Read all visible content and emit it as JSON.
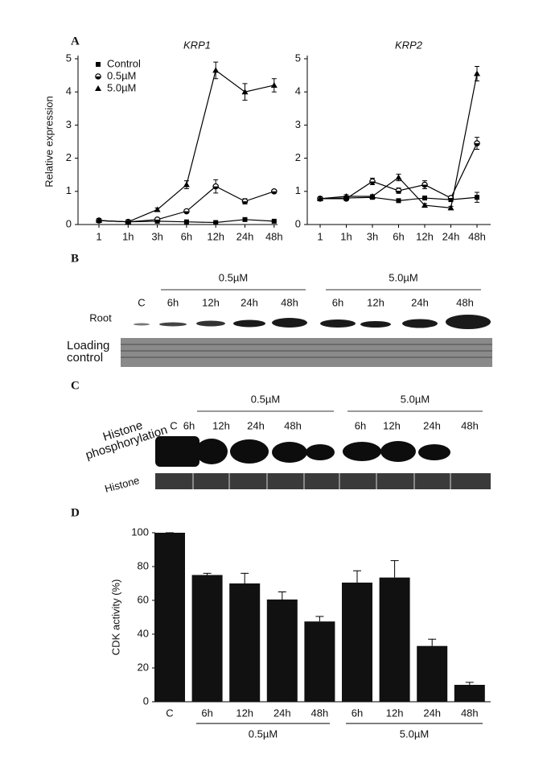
{
  "panel_labels": [
    "A",
    "B",
    "C",
    "D"
  ],
  "chart_data": [
    {
      "type": "line",
      "title": "KRP1",
      "ylabel": "Relative expression",
      "categories": [
        "1",
        "1h",
        "3h",
        "6h",
        "12h",
        "24h",
        "48h"
      ],
      "ylim": [
        0,
        5
      ],
      "yticks": [
        0,
        1,
        2,
        3,
        4,
        5
      ],
      "legend": "upper left",
      "series": [
        {
          "name": "Control",
          "marker": "square",
          "color": "#000000",
          "values": [
            0.12,
            0.08,
            0.1,
            0.08,
            0.06,
            0.15,
            0.1
          ],
          "errors": [
            0.02,
            0.02,
            0.02,
            0.02,
            0.02,
            0.03,
            0.02
          ]
        },
        {
          "name": "0.5µM",
          "marker": "half-circle",
          "color": "#000000",
          "values": [
            0.12,
            0.08,
            0.15,
            0.4,
            1.15,
            0.7,
            1.0
          ],
          "errors": [
            0.02,
            0.02,
            0.03,
            0.05,
            0.2,
            0.08,
            0.05
          ]
        },
        {
          "name": "5.0µM",
          "marker": "triangle",
          "color": "#000000",
          "values": [
            0.12,
            0.08,
            0.45,
            1.2,
            4.65,
            4.0,
            4.2
          ],
          "errors": [
            0.03,
            0.02,
            0.05,
            0.12,
            0.25,
            0.25,
            0.2
          ]
        }
      ]
    },
    {
      "type": "line",
      "title": "KRP2",
      "categories": [
        "1",
        "1h",
        "3h",
        "6h",
        "12h",
        "24h",
        "48h"
      ],
      "ylim": [
        0,
        5
      ],
      "yticks": [
        0,
        1,
        2,
        3,
        4,
        5
      ],
      "series": [
        {
          "name": "Control",
          "marker": "square",
          "color": "#000000",
          "values": [
            0.78,
            0.8,
            0.82,
            0.72,
            0.8,
            0.75,
            0.82
          ],
          "errors": [
            0.05,
            0.05,
            0.05,
            0.05,
            0.05,
            0.05,
            0.15
          ]
        },
        {
          "name": "0.5µM",
          "marker": "half-circle",
          "color": "#000000",
          "values": [
            0.78,
            0.78,
            1.3,
            1.02,
            1.2,
            0.8,
            2.45
          ],
          "errors": [
            0.05,
            0.05,
            0.1,
            0.08,
            0.12,
            0.05,
            0.18
          ]
        },
        {
          "name": "5.0µM",
          "marker": "triangle",
          "color": "#000000",
          "values": [
            0.78,
            0.85,
            0.85,
            1.42,
            0.58,
            0.5,
            4.55
          ],
          "errors": [
            0.05,
            0.05,
            0.05,
            0.1,
            0.05,
            0.05,
            0.22
          ]
        }
      ]
    },
    {
      "type": "bar",
      "ylabel": "CDK activity (%)",
      "categories": [
        "C",
        "6h",
        "12h",
        "24h",
        "48h",
        "6h",
        "12h",
        "24h",
        "48h"
      ],
      "groups": [
        "0.5µM",
        "5.0µM"
      ],
      "values": [
        100,
        75,
        70,
        60.5,
        47.5,
        70.5,
        73.5,
        33,
        10
      ],
      "errors": [
        0,
        1,
        6,
        4.5,
        3,
        7,
        10,
        4,
        1.5
      ],
      "color": "#111111",
      "ylim": [
        0,
        100
      ],
      "yticks": [
        0,
        20,
        40,
        60,
        80,
        100
      ]
    }
  ],
  "blots": {
    "B": {
      "lanes": [
        "C",
        "6h",
        "12h",
        "24h",
        "48h",
        "6h",
        "12h",
        "24h",
        "48h"
      ],
      "groups": [
        "0.5µM",
        "5.0µM"
      ],
      "rows": [
        "Root",
        "Loading control"
      ]
    },
    "C": {
      "lanes": [
        "C",
        "6h",
        "12h",
        "24h",
        "48h",
        "6h",
        "12h",
        "24h",
        "48h"
      ],
      "groups": [
        "0.5µM",
        "5.0µM"
      ],
      "rows": [
        "Histone phosphorylation",
        "Histone"
      ]
    }
  }
}
